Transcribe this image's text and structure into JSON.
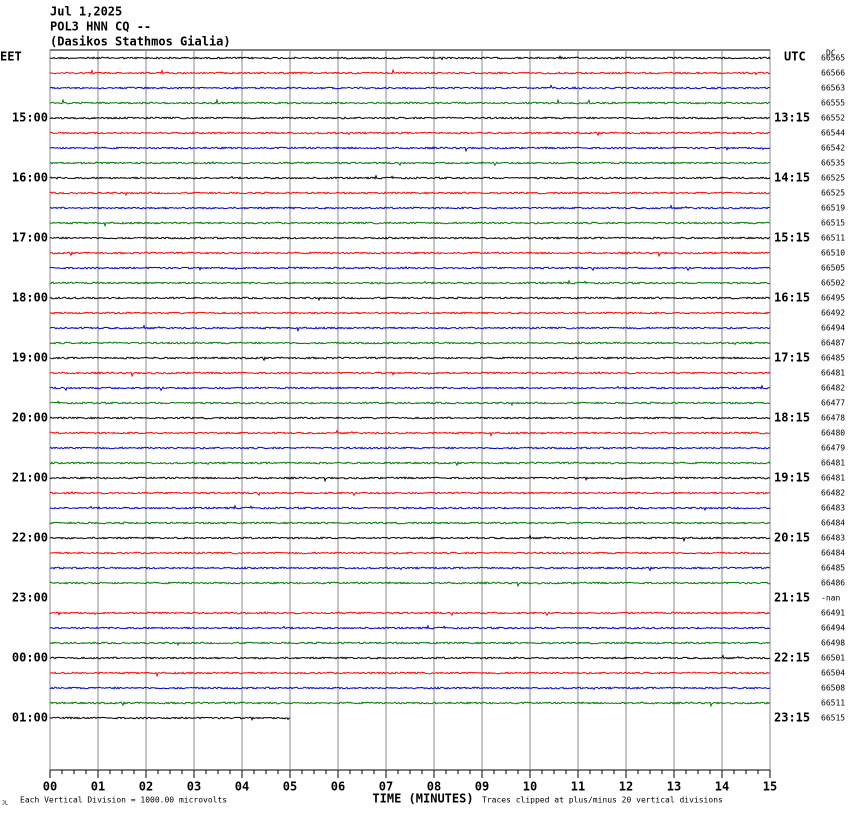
{
  "chart_data": {
    "type": "helicorder",
    "header_lines": [
      "Jul 1,2025",
      "POL3 HNN CQ --",
      "(Dasikos Stathmos Gialia)"
    ],
    "left_zone": "EET",
    "right_zone": "UTC",
    "dc_label": "DC",
    "left_labels": [
      "15:00",
      "16:00",
      "17:00",
      "18:00",
      "19:00",
      "20:00",
      "21:00",
      "22:00",
      "23:00",
      "00:00",
      "01:00"
    ],
    "right_labels": [
      "13:15",
      "14:15",
      "15:15",
      "16:15",
      "17:15",
      "18:15",
      "19:15",
      "20:15",
      "21:15",
      "22:15",
      "23:15"
    ],
    "dc_values": [
      66565,
      66566,
      66563,
      66555,
      66552,
      66544,
      66542,
      66535,
      66525,
      66525,
      66519,
      66515,
      66511,
      66510,
      66505,
      66502,
      66495,
      66492,
      66494,
      66487,
      66485,
      66481,
      66482,
      66477,
      66478,
      66480,
      66479,
      66481,
      66481,
      66482,
      66483,
      66484,
      66483,
      66484,
      66485,
      66486,
      "-nan",
      66491,
      66494,
      66498,
      66501,
      66504,
      66508,
      66511,
      66515
    ],
    "trace_colors": [
      "#000000",
      "#ff0000",
      "#0000cc",
      "#007700"
    ],
    "trace_ends": [
      15,
      15,
      15,
      15,
      15,
      15,
      15,
      15,
      15,
      15,
      15,
      15,
      15,
      15,
      15,
      15,
      15,
      15,
      15,
      15,
      15,
      15,
      15,
      15,
      15,
      15,
      15,
      15,
      15,
      15,
      15,
      15,
      15,
      15,
      15,
      15,
      null,
      15,
      15,
      15,
      15,
      15,
      15,
      15,
      5
    ],
    "xlabel": "TIME (MINUTES)",
    "xlim": [
      0,
      15
    ],
    "xticks": [
      {
        "value": 0,
        "label": "00"
      },
      {
        "value": 1,
        "label": "01"
      },
      {
        "value": 2,
        "label": "02"
      },
      {
        "value": 3,
        "label": "03"
      },
      {
        "value": 4,
        "label": "04"
      },
      {
        "value": 5,
        "label": "05"
      },
      {
        "value": 6,
        "label": "06"
      },
      {
        "value": 7,
        "label": "07"
      },
      {
        "value": 8,
        "label": "08"
      },
      {
        "value": 9,
        "label": "09"
      },
      {
        "value": 10,
        "label": "10"
      },
      {
        "value": 11,
        "label": "11"
      },
      {
        "value": 12,
        "label": "12"
      },
      {
        "value": 13,
        "label": "13"
      },
      {
        "value": 14,
        "label": "14"
      },
      {
        "value": 15,
        "label": "15"
      }
    ],
    "scale_note": "Each Vertical Division = 1000.00 microvolts",
    "clip_note": "Traces clipped at plus/minus 20 vertical divisions",
    "corner_mark": "JL"
  }
}
